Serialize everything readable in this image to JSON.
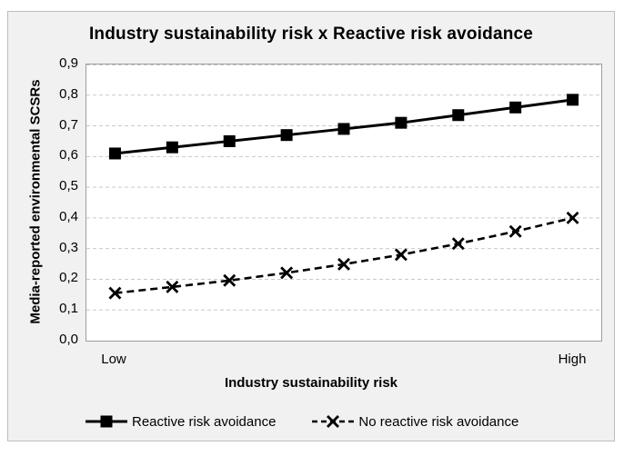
{
  "chart_data": {
    "type": "line",
    "title": "Industry sustainability risk x Reactive risk avoidance",
    "xlabel": "Industry sustainability risk",
    "ylabel": "Media-reported environmental SCSRs",
    "x_end_labels": [
      "Low",
      "High"
    ],
    "ylim": [
      0,
      0.9
    ],
    "y_tick_step": 0.1,
    "y_tick_labels": [
      "0,0",
      "0,1",
      "0,2",
      "0,3",
      "0,4",
      "0,5",
      "0,6",
      "0,7",
      "0,8",
      "0,9"
    ],
    "grid": "horizontal-dashed",
    "legend_position": "bottom",
    "series": [
      {
        "name": "Reactive risk avoidance",
        "line_style": "solid",
        "marker": "filled-square",
        "color": "#000000",
        "values": [
          0.61,
          0.63,
          0.65,
          0.67,
          0.69,
          0.71,
          0.735,
          0.76,
          0.785
        ]
      },
      {
        "name": "No reactive risk avoidance",
        "line_style": "dashed",
        "marker": "x",
        "color": "#000000",
        "values": [
          0.155,
          0.175,
          0.196,
          0.221,
          0.249,
          0.28,
          0.316,
          0.356,
          0.4
        ]
      }
    ]
  },
  "colors": {
    "panel_background": "#f1f1f1",
    "panel_border": "#bdbdbd",
    "plot_background": "#ffffff",
    "plot_border": "#9e9e9e",
    "gridline": "#c9c9c9",
    "series": "#000000",
    "text": "#000000"
  }
}
